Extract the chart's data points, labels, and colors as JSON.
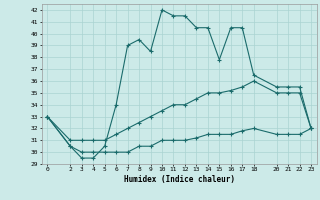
{
  "title": "",
  "xlabel": "Humidex (Indice chaleur)",
  "bg_color": "#cceae8",
  "grid_color": "#aad4d2",
  "line_color": "#1a6b6b",
  "xlim": [
    -0.5,
    23.5
  ],
  "ylim": [
    29,
    42.5
  ],
  "xticks": [
    0,
    2,
    3,
    4,
    5,
    6,
    7,
    8,
    9,
    10,
    11,
    12,
    13,
    14,
    15,
    16,
    17,
    18,
    20,
    21,
    22,
    23
  ],
  "yticks": [
    29,
    30,
    31,
    32,
    33,
    34,
    35,
    36,
    37,
    38,
    39,
    40,
    41,
    42
  ],
  "series": [
    {
      "x": [
        0,
        2,
        3,
        4,
        5,
        6,
        7,
        8,
        9,
        10,
        11,
        12,
        13,
        14,
        15,
        16,
        17,
        18,
        20,
        21,
        22,
        23
      ],
      "y": [
        33,
        30.5,
        29.5,
        29.5,
        30.5,
        34,
        39,
        39.5,
        38.5,
        42,
        41.5,
        41.5,
        40.5,
        40.5,
        37.8,
        40.5,
        40.5,
        36.5,
        35.5,
        35.5,
        35.5,
        32
      ]
    },
    {
      "x": [
        0,
        2,
        3,
        4,
        5,
        6,
        7,
        8,
        9,
        10,
        11,
        12,
        13,
        14,
        15,
        16,
        17,
        18,
        20,
        21,
        22,
        23
      ],
      "y": [
        33,
        31,
        31,
        31,
        31,
        31.5,
        32,
        32.5,
        33,
        33.5,
        34,
        34,
        34.5,
        35,
        35,
        35.2,
        35.5,
        36,
        35,
        35,
        35,
        32
      ]
    },
    {
      "x": [
        0,
        2,
        3,
        4,
        5,
        6,
        7,
        8,
        9,
        10,
        11,
        12,
        13,
        14,
        15,
        16,
        17,
        18,
        20,
        21,
        22,
        23
      ],
      "y": [
        33,
        30.5,
        30,
        30,
        30,
        30,
        30,
        30.5,
        30.5,
        31,
        31,
        31,
        31.2,
        31.5,
        31.5,
        31.5,
        31.8,
        32,
        31.5,
        31.5,
        31.5,
        32
      ]
    }
  ]
}
